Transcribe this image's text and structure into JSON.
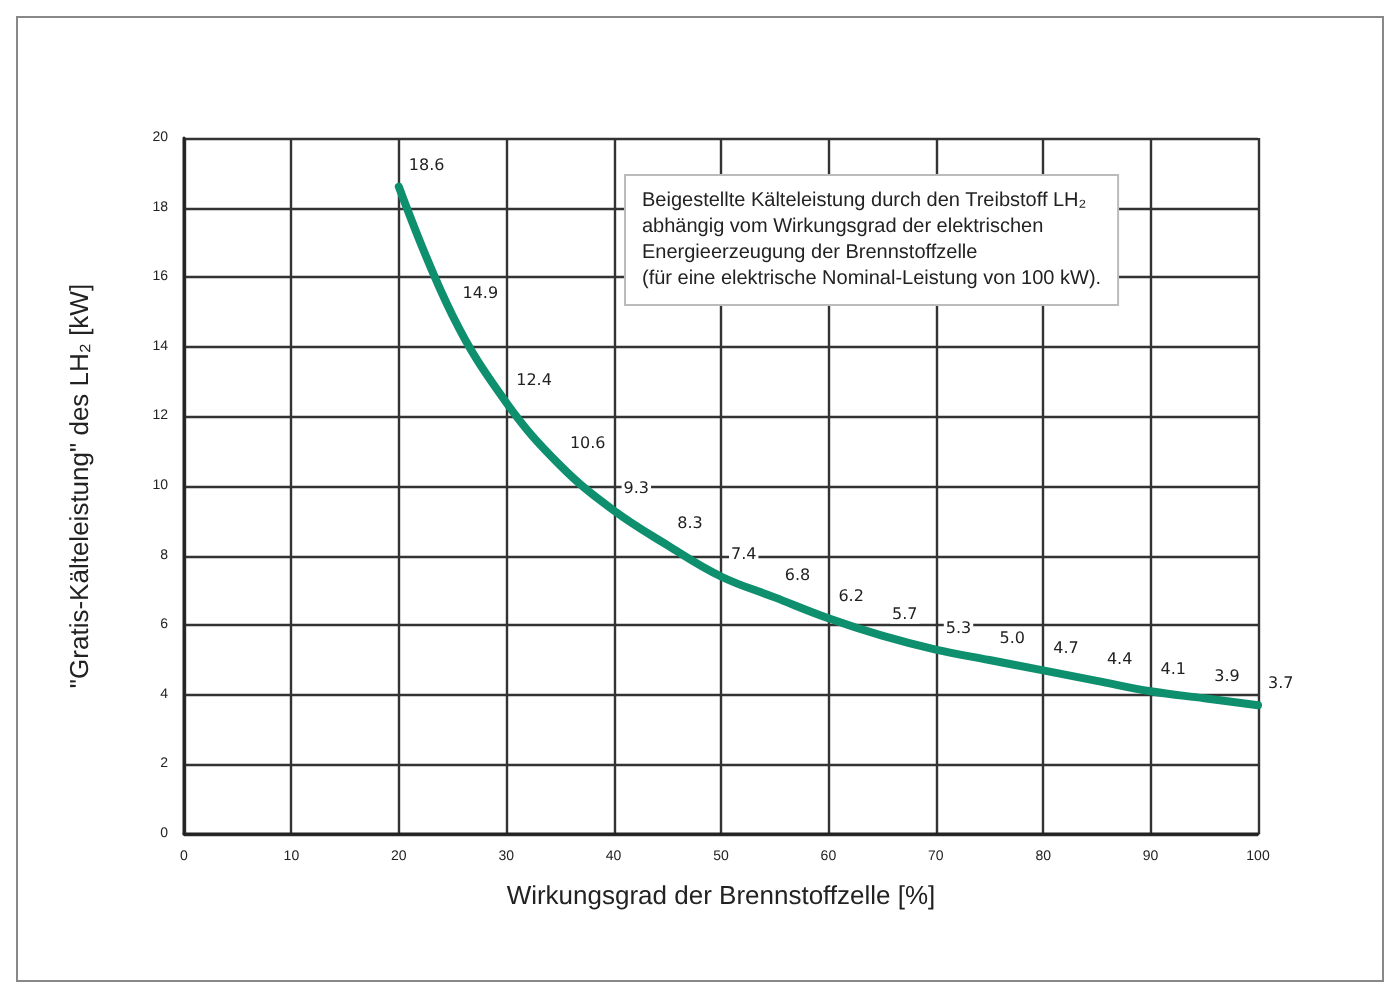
{
  "chart_data": {
    "type": "line",
    "xlabel": "Wirkungsgrad der Brennstoffzelle [%]",
    "ylabel": "\"Gratis-Kälteleistung\" des LH₂ [kW]",
    "annotations": [
      "Beigestellte Kälteleistung durch den Treibstoff LH₂\nabhängig vom Wirkungsgrad der elektrischen\nEnergieerzeugung der Brennstoffzelle\n(für eine elektrische Nominal-Leistung von 100 kW)."
    ],
    "x": [
      20,
      25,
      30,
      35,
      40,
      45,
      50,
      55,
      60,
      65,
      70,
      75,
      80,
      85,
      90,
      95,
      100
    ],
    "series": [
      {
        "color": "#0e8f6e",
        "values": [
          18.6,
          14.9,
          12.4,
          10.6,
          9.3,
          8.3,
          7.4,
          6.8,
          6.2,
          5.7,
          5.3,
          5.0,
          4.7,
          4.4,
          4.1,
          3.9,
          3.7
        ],
        "value_labels": [
          "18.6",
          "14.9",
          "12.4",
          "10.6",
          "9.3",
          "8.3",
          "7.4",
          "6.8",
          "6.2",
          "5.7",
          "5.3",
          "5.0",
          "4.7",
          "4.4",
          "4.1",
          "3.9",
          "3.7"
        ]
      }
    ],
    "xlim": [
      0,
      100
    ],
    "xticks": [
      0,
      10,
      20,
      30,
      40,
      50,
      60,
      70,
      80,
      90,
      100
    ],
    "ylim": [
      0,
      20
    ],
    "yticks": [
      0,
      2,
      4,
      6,
      8,
      10,
      12,
      14,
      16,
      18,
      20
    ],
    "grid": true,
    "marker": "none",
    "line_style": "solid"
  }
}
